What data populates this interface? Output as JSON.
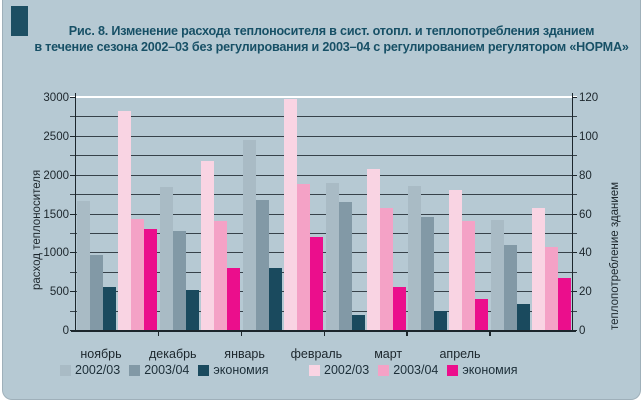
{
  "card": {
    "background": "#b6c9d3",
    "accent_color": "#1d4f63",
    "title_line1": "Рис. 8. Изменение расхода теплоносителя в сист. отопл. и теплопотребления зданием",
    "title_line2": "в течение сезона 2002–03 без регулирования и 2003–04 с регулированием регулятором «НОРМА»"
  },
  "chart_data": {
    "type": "bar",
    "categories": [
      "ноябрь",
      "декабрь",
      "январь",
      "февраль",
      "март",
      "апрель"
    ],
    "left_axis": {
      "label": "расход теплоносителя",
      "ticks": [
        0,
        500,
        1000,
        1500,
        2000,
        2500,
        3000
      ],
      "minor_step": 250,
      "range": [
        0,
        3000
      ]
    },
    "right_axis": {
      "label": "теплопотребление зданием",
      "ticks": [
        0,
        20,
        40,
        60,
        80,
        100,
        120
      ],
      "range": [
        0,
        120
      ]
    },
    "series": [
      {
        "name": "2002/03",
        "axis": "left",
        "color": "#a9bbc5",
        "values": [
          1660,
          1840,
          2440,
          1890,
          1860,
          1420
        ]
      },
      {
        "name": "2003/04",
        "axis": "left",
        "color": "#8299a6",
        "values": [
          960,
          1270,
          1680,
          1650,
          1450,
          1100
        ]
      },
      {
        "name": "экономия",
        "axis": "left",
        "color": "#1a4a5e",
        "values": [
          560,
          520,
          800,
          190,
          250,
          330
        ]
      },
      {
        "name": "2002/03",
        "axis": "right",
        "color": "#f9d4e3",
        "values": [
          113,
          87,
          119,
          83,
          72,
          63
        ]
      },
      {
        "name": "2003/04",
        "axis": "right",
        "color": "#f4a2c6",
        "values": [
          57,
          56,
          75,
          63,
          56,
          43
        ]
      },
      {
        "name": "экономия",
        "axis": "right",
        "color": "#eb0e8c",
        "values": [
          52,
          32,
          48,
          22,
          16,
          27
        ]
      }
    ],
    "grid": {
      "color": "#37424a",
      "top_line_color": "#ffffff"
    },
    "legend_position": "bottom"
  }
}
